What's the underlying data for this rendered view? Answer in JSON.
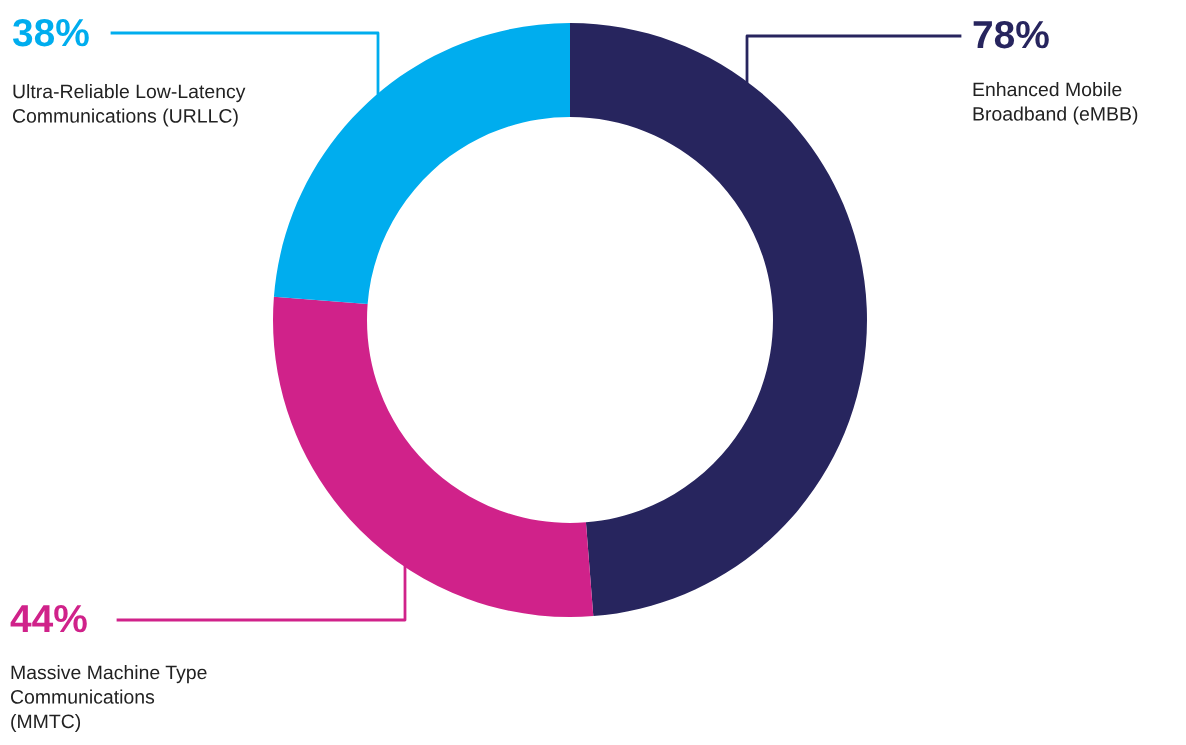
{
  "chart_data": {
    "type": "donut",
    "categories": [
      "Enhanced Mobile\nBroadband (eMBB)",
      "Massive Machine Type\nCommunications\n(MMTC)",
      "Ultra-Reliable Low-Latency\nCommunications (URLLC)"
    ],
    "values": [
      78,
      44,
      38
    ],
    "value_labels": [
      "78%",
      "44%",
      "38%"
    ],
    "colors": [
      "#27255e",
      "#d0228a",
      "#00adee"
    ]
  }
}
